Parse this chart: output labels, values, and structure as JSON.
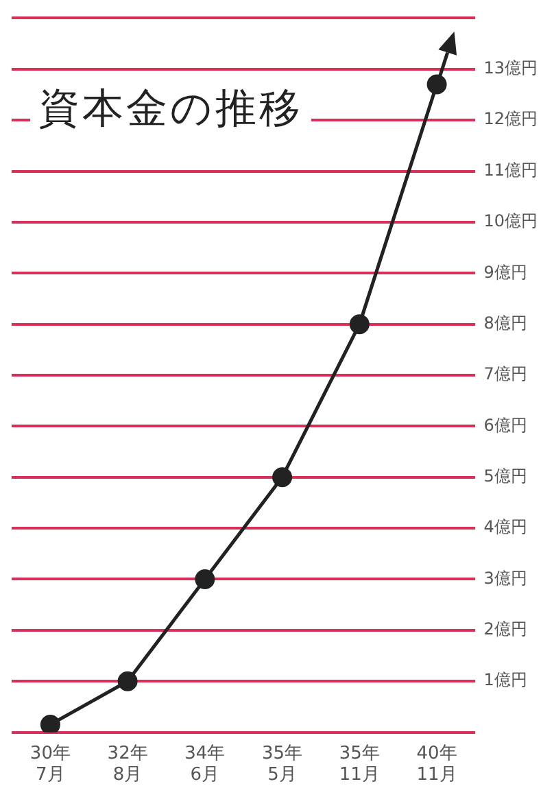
{
  "chart_data": {
    "type": "line",
    "title": "資本金の推移",
    "categories": [
      "30年\n7月",
      "32年\n8月",
      "34年\n6月",
      "35年\n5月",
      "35年\n11月",
      "40年\n11月"
    ],
    "series": [
      {
        "color": "#222222",
        "values": [
          0.15,
          1,
          3,
          5,
          8,
          12.7
        ]
      }
    ],
    "ylim": [
      0,
      14
    ],
    "yticks": [
      {
        "value": 0,
        "label": null
      },
      {
        "value": 1,
        "label": "1億円"
      },
      {
        "value": 2,
        "label": "2億円"
      },
      {
        "value": 3,
        "label": "3億円"
      },
      {
        "value": 4,
        "label": "4億円"
      },
      {
        "value": 5,
        "label": "5億円"
      },
      {
        "value": 6,
        "label": "6億円"
      },
      {
        "value": 7,
        "label": "7億円"
      },
      {
        "value": 8,
        "label": "8億円"
      },
      {
        "value": 9,
        "label": "9億円"
      },
      {
        "value": 10,
        "label": "10億円"
      },
      {
        "value": 11,
        "label": "11億円"
      },
      {
        "value": 12,
        "label": "12億円"
      },
      {
        "value": 13,
        "label": "13億円"
      },
      {
        "value": 14,
        "label": null
      }
    ],
    "grid": "y",
    "marker": "circle",
    "line_style": "solid",
    "legend": false
  }
}
